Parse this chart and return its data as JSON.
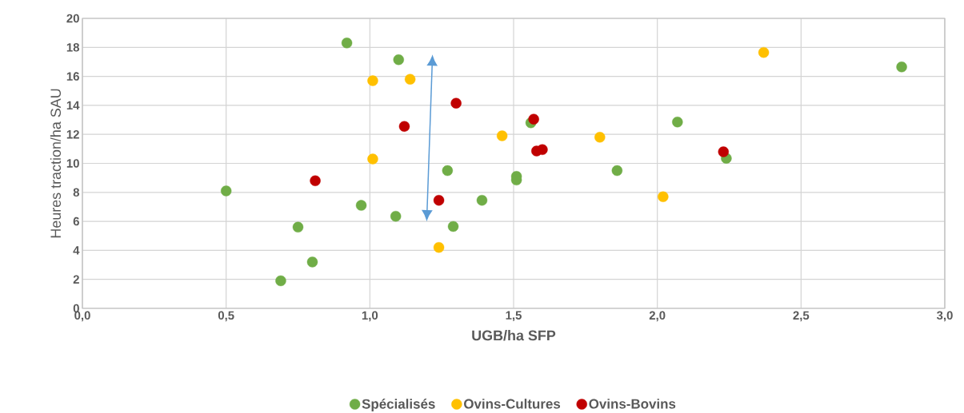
{
  "chart_data": {
    "type": "scatter",
    "xlabel": "UGB/ha SFP",
    "ylabel": "Heures traction/ha SAU",
    "series": [
      {
        "name": "Spécialisés",
        "color": "#70ad47",
        "x": [
          0.5,
          0.69,
          0.75,
          0.8,
          0.92,
          0.97,
          1.09,
          1.1,
          1.27,
          1.29,
          1.39,
          1.51,
          1.51,
          1.56,
          1.86,
          2.07,
          2.24,
          2.85
        ],
        "values": [
          8.1,
          1.9,
          5.6,
          3.2,
          18.3,
          7.1,
          6.35,
          17.15,
          9.5,
          5.65,
          7.45,
          9.1,
          8.85,
          12.8,
          9.5,
          12.85,
          10.35,
          16.65
        ]
      },
      {
        "name": "Ovins-Cultures",
        "color": "#ffc000",
        "x": [
          1.01,
          1.01,
          1.14,
          1.24,
          1.46,
          1.8,
          2.02,
          2.37
        ],
        "values": [
          15.7,
          10.3,
          15.8,
          4.2,
          11.9,
          11.8,
          7.7,
          17.65
        ]
      },
      {
        "name": "Ovins-Bovins",
        "color": "#c00000",
        "x": [
          0.81,
          1.12,
          1.24,
          1.3,
          1.57,
          1.58,
          1.6,
          2.23
        ],
        "values": [
          8.8,
          12.55,
          7.45,
          14.15,
          13.05,
          10.85,
          10.95,
          10.8
        ]
      }
    ],
    "xlim": [
      0,
      3
    ],
    "ylim": [
      0,
      20
    ],
    "xticks": [
      {
        "value": 0,
        "label": "0,0"
      },
      {
        "value": 0.5,
        "label": "0,5"
      },
      {
        "value": 1,
        "label": "1,0"
      },
      {
        "value": 1.5,
        "label": "1,5"
      },
      {
        "value": 2,
        "label": "2,0"
      },
      {
        "value": 2.5,
        "label": "2,5"
      },
      {
        "value": 3,
        "label": "3,0"
      }
    ],
    "yticks": [
      0,
      2,
      4,
      6,
      8,
      10,
      12,
      14,
      16,
      18,
      20
    ],
    "grid": true,
    "legend": "bottom",
    "marker": "circle"
  }
}
